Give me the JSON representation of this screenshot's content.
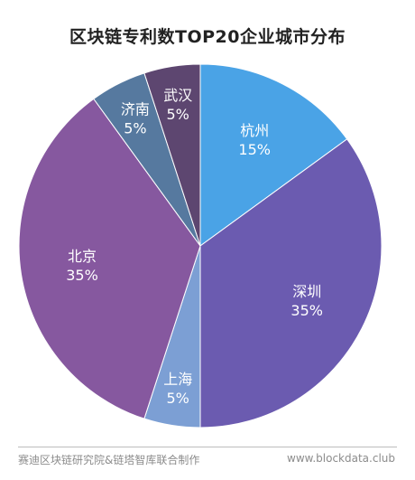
{
  "chart_data": {
    "type": "pie",
    "title": "区块链专利数TOP20企业城市分布",
    "slices": [
      {
        "label": "杭州",
        "value": 15,
        "value_label": "15%",
        "color": "#4aa3e6"
      },
      {
        "label": "深圳",
        "value": 35,
        "value_label": "35%",
        "color": "#6b5bb0"
      },
      {
        "label": "上海",
        "value": 5,
        "value_label": "5%",
        "color": "#7c9fd4"
      },
      {
        "label": "北京",
        "value": 35,
        "value_label": "35%",
        "color": "#86589f"
      },
      {
        "label": "济南",
        "value": 5,
        "value_label": "5%",
        "color": "#56799f"
      },
      {
        "label": "武汉",
        "value": 5,
        "value_label": "5%",
        "color": "#5d4670"
      }
    ],
    "start_angle_deg": 0,
    "direction": "clockwise",
    "legend": "none",
    "labels_inside_slices": true
  },
  "footer": {
    "source": "赛迪区块链研究院&链塔智库联合制作",
    "website": "www.blockdata.club"
  }
}
